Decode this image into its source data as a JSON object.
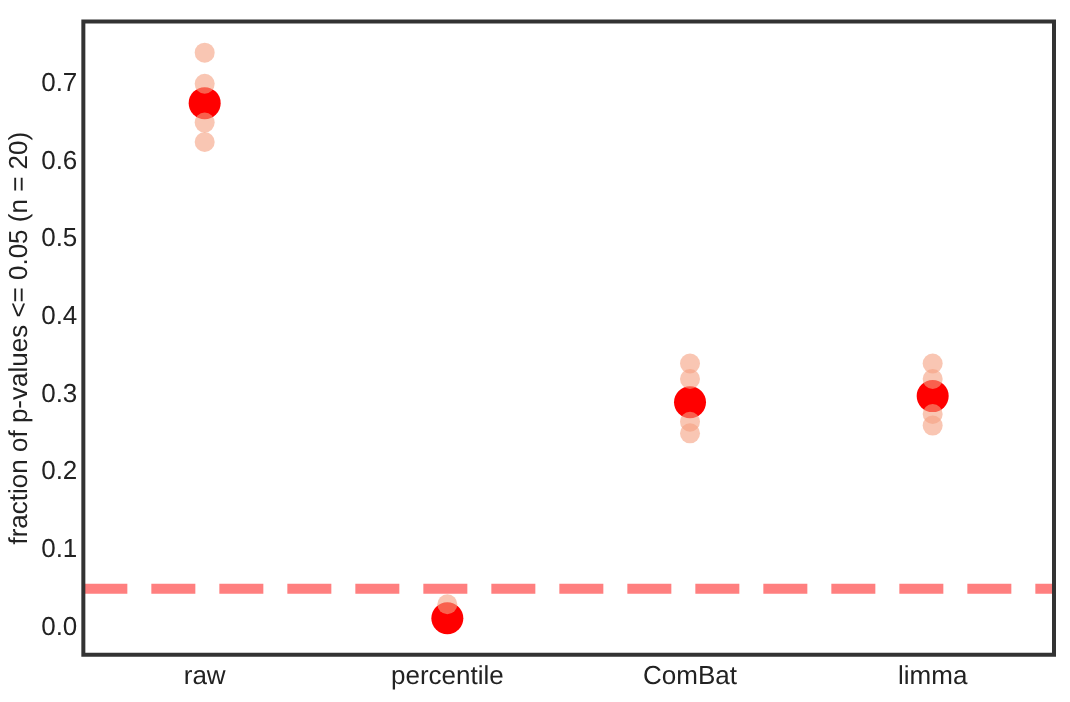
{
  "chart_data": {
    "type": "scatter",
    "ylabel": "fraction of p-values <= 0.05 (n = 20)",
    "categories": [
      "raw",
      "percentile",
      "ComBat",
      "limma"
    ],
    "series": [
      {
        "color": "#f5a080",
        "x": [
          "raw",
          "raw",
          "raw",
          "raw",
          "percentile",
          "ComBat",
          "ComBat",
          "ComBat",
          "ComBat",
          "limma",
          "limma",
          "limma",
          "limma"
        ],
        "values": [
          0.74,
          0.7,
          0.65,
          0.625,
          0.03,
          0.34,
          0.32,
          0.265,
          0.25,
          0.34,
          0.32,
          0.275,
          0.26
        ]
      },
      {
        "color": "#ff0000",
        "x": [
          "raw",
          "percentile",
          "ComBat",
          "limma"
        ],
        "values": [
          0.675,
          0.012,
          0.29,
          0.298
        ]
      }
    ],
    "ylim": [
      -0.035,
      0.78
    ],
    "yticks": [
      {
        "value": 0,
        "label": "0.0"
      },
      0.1,
      0.2,
      0.3,
      0.4,
      0.5,
      0.6,
      0.7
    ],
    "grid": false,
    "legend": false,
    "marker": "circle",
    "ref_lines": [
      {
        "axis": "y",
        "value": 0.05,
        "color": "#ff7f7f",
        "line_style": "dashed"
      }
    ]
  }
}
